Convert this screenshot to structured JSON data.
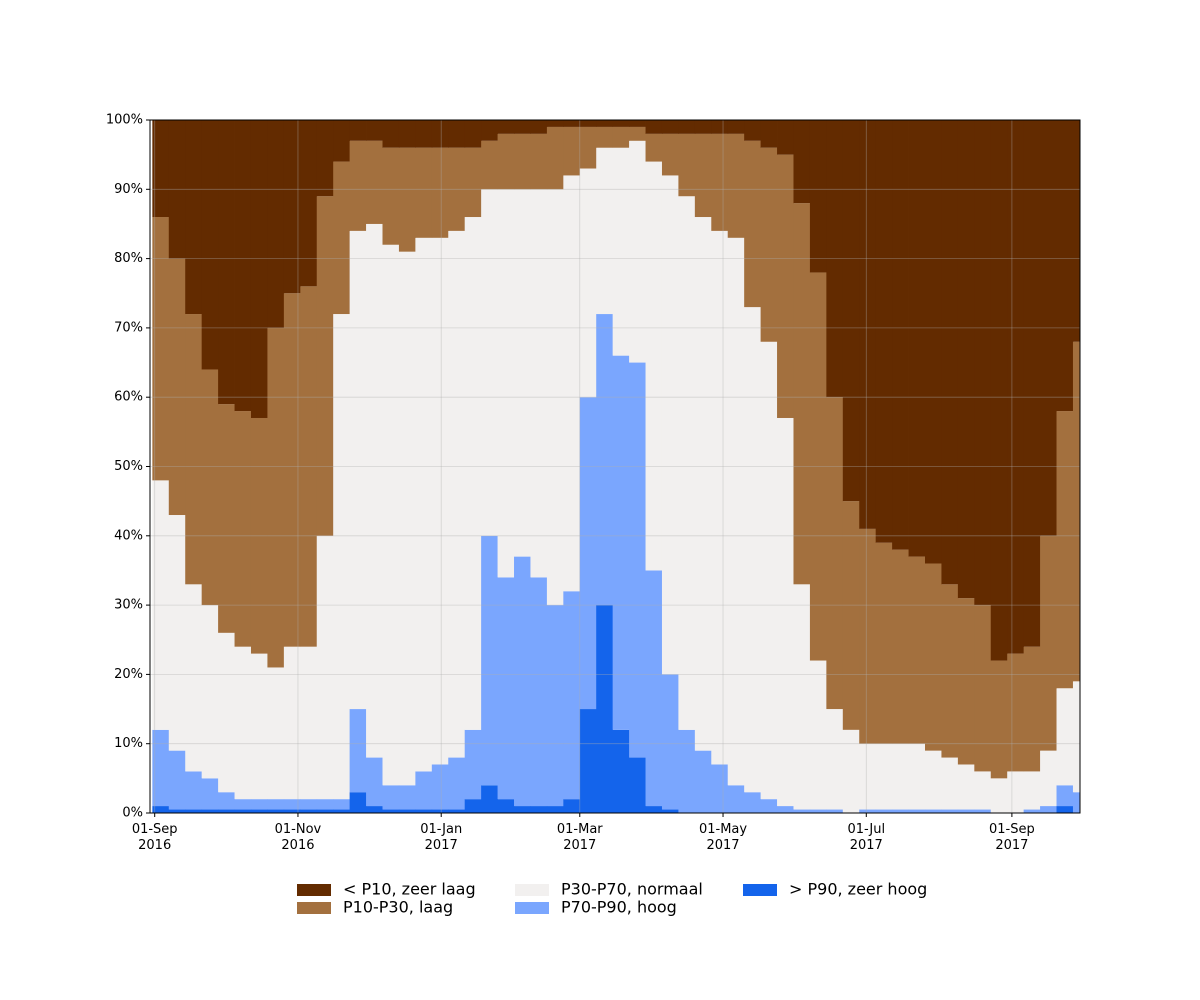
{
  "chart_data": {
    "type": "stacked-area-step",
    "x": [
      "2016-08-31",
      "2016-09-07",
      "2016-09-14",
      "2016-09-21",
      "2016-09-28",
      "2016-10-05",
      "2016-10-12",
      "2016-10-19",
      "2016-10-26",
      "2016-11-02",
      "2016-11-09",
      "2016-11-16",
      "2016-11-23",
      "2016-11-30",
      "2016-12-07",
      "2016-12-14",
      "2016-12-21",
      "2016-12-28",
      "2017-01-04",
      "2017-01-11",
      "2017-01-18",
      "2017-01-25",
      "2017-02-01",
      "2017-02-08",
      "2017-02-15",
      "2017-02-22",
      "2017-03-01",
      "2017-03-08",
      "2017-03-15",
      "2017-03-22",
      "2017-03-29",
      "2017-04-05",
      "2017-04-12",
      "2017-04-19",
      "2017-04-26",
      "2017-05-03",
      "2017-05-10",
      "2017-05-17",
      "2017-05-24",
      "2017-05-31",
      "2017-06-07",
      "2017-06-14",
      "2017-06-21",
      "2017-06-28",
      "2017-07-05",
      "2017-07-12",
      "2017-07-19",
      "2017-07-26",
      "2017-08-02",
      "2017-08-09",
      "2017-08-16",
      "2017-08-23",
      "2017-08-30",
      "2017-09-06",
      "2017-09-13",
      "2017-09-20",
      "2017-09-27"
    ],
    "series": [
      {
        "name": "< P10, zeer laag",
        "color": "#632b00",
        "values": [
          14,
          20,
          28,
          36,
          41,
          42,
          43,
          30,
          25,
          24,
          11,
          6,
          3,
          3,
          4,
          4,
          4,
          4,
          4,
          4,
          3,
          2,
          2,
          2,
          1,
          1,
          1,
          1,
          1,
          1,
          2,
          2,
          2,
          2,
          2,
          2,
          3,
          4,
          5,
          12,
          22,
          40,
          55,
          59,
          61,
          62,
          63,
          64,
          67,
          69,
          70,
          78,
          77,
          76,
          60,
          42,
          32
        ]
      },
      {
        "name": "P10-P30, laag",
        "color": "#a3703e",
        "values": [
          38,
          37,
          39,
          34,
          33,
          34,
          34,
          49,
          51,
          52,
          49,
          22,
          13,
          12,
          14,
          15,
          13,
          13,
          12,
          10,
          7,
          8,
          8,
          8,
          9,
          7,
          6,
          3,
          3,
          2,
          4,
          6,
          9,
          12,
          14,
          15,
          24,
          28,
          38,
          55,
          56,
          45,
          33,
          31,
          29,
          28,
          27,
          27,
          25,
          24,
          24,
          17,
          17,
          18,
          31,
          40,
          49
        ]
      },
      {
        "name": "P30-P70, normaal",
        "color": "#f2f0ef",
        "values": [
          36,
          34,
          27,
          25,
          23,
          22,
          21,
          19,
          22,
          22,
          38,
          70,
          69,
          77,
          78,
          77,
          77,
          76,
          76,
          74,
          50,
          56,
          53,
          56,
          60,
          60,
          33,
          24,
          30,
          32,
          59,
          72,
          77,
          77,
          77,
          79,
          70,
          66,
          56,
          32.5,
          21.5,
          14.5,
          12,
          9.5,
          9.5,
          9.5,
          9.5,
          8.5,
          7.5,
          6.5,
          5.5,
          5,
          6,
          5.5,
          8,
          14,
          16
        ]
      },
      {
        "name": "P70-P90, hoog",
        "color": "#7aa6fe",
        "values": [
          11,
          8.5,
          5.5,
          4.5,
          2.5,
          1.5,
          1.5,
          1.5,
          1.5,
          1.5,
          1.5,
          1.5,
          12,
          7,
          3.5,
          3.5,
          5.5,
          6.5,
          7.5,
          10,
          36,
          32,
          36,
          33,
          29,
          30,
          45,
          42,
          54,
          57,
          34,
          19.5,
          12,
          9,
          7,
          4,
          3,
          2,
          1,
          0.5,
          0.5,
          0.5,
          0,
          0.5,
          0.5,
          0.5,
          0.5,
          0.5,
          0.5,
          0.5,
          0.5,
          0,
          0,
          0.5,
          1,
          3,
          3
        ]
      },
      {
        "name": "> P90, zeer hoog",
        "color": "#1464eb",
        "values": [
          1,
          0.5,
          0.5,
          0.5,
          0.5,
          0.5,
          0.5,
          0.5,
          0.5,
          0.5,
          0.5,
          0.5,
          3,
          1,
          0.5,
          0.5,
          0.5,
          0.5,
          0.5,
          2,
          4,
          2,
          1,
          1,
          1,
          2,
          15,
          30,
          12,
          8,
          1,
          0.5,
          0,
          0,
          0,
          0,
          0,
          0,
          0,
          0,
          0,
          0,
          0,
          0,
          0,
          0,
          0,
          0,
          0,
          0,
          0,
          0,
          0,
          0,
          0,
          1,
          0
        ]
      }
    ],
    "xlim": [
      "2016-08-30",
      "2017-09-30"
    ],
    "xticks": [
      {
        "value": "2016-09-01",
        "label": "01-Sep\n2016"
      },
      {
        "value": "2016-11-01",
        "label": "01-Nov\n2016"
      },
      {
        "value": "2017-01-01",
        "label": "01-Jan\n2017"
      },
      {
        "value": "2017-03-01",
        "label": "01-Mar\n2017"
      },
      {
        "value": "2017-05-01",
        "label": "01-May\n2017"
      },
      {
        "value": "2017-07-01",
        "label": "01-Jul\n2017"
      },
      {
        "value": "2017-09-01",
        "label": "01-Sep\n2017"
      }
    ],
    "ylim": [
      0,
      100
    ],
    "yticks": [
      {
        "value": 0,
        "label": "0%"
      },
      {
        "value": 10,
        "label": "10%"
      },
      {
        "value": 20,
        "label": "20%"
      },
      {
        "value": 30,
        "label": "30%"
      },
      {
        "value": 40,
        "label": "40%"
      },
      {
        "value": 50,
        "label": "50%"
      },
      {
        "value": 60,
        "label": "60%"
      },
      {
        "value": 70,
        "label": "70%"
      },
      {
        "value": 80,
        "label": "80%"
      },
      {
        "value": 90,
        "label": "90%"
      },
      {
        "value": 100,
        "label": "100%"
      }
    ],
    "grid": true,
    "legend": {
      "position": "below",
      "ncol": 3
    }
  }
}
